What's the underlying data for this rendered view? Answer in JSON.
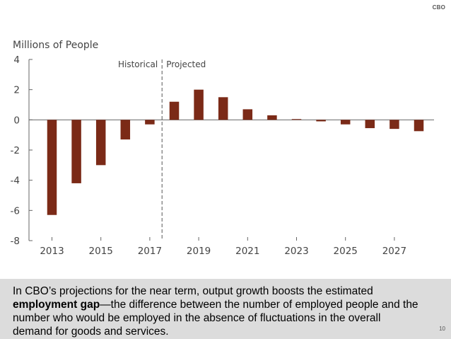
{
  "header": {
    "logo": "CBO"
  },
  "chart_data": {
    "type": "bar",
    "ylabel": "Millions of People",
    "ylim": [
      -8,
      4
    ],
    "yticks": [
      4,
      2,
      0,
      -2,
      -4,
      -6,
      -8
    ],
    "categories": [
      2013,
      2014,
      2015,
      2016,
      2017,
      2018,
      2019,
      2020,
      2021,
      2022,
      2023,
      2024,
      2025,
      2026,
      2027,
      2028
    ],
    "xtick_labels": [
      "2013",
      "2015",
      "2017",
      "2019",
      "2021",
      "2023",
      "2025",
      "2027"
    ],
    "values": [
      -6.3,
      -4.2,
      -3.0,
      -1.3,
      -0.3,
      1.2,
      2.0,
      1.5,
      0.7,
      0.3,
      0.05,
      -0.1,
      -0.3,
      -0.55,
      -0.6,
      -0.75
    ],
    "annotations": {
      "left": "Historical",
      "right": "Projected"
    },
    "bar_color": "#7b2a17"
  },
  "caption": {
    "text_before": "In CBO’s projections for the near term, output growth boosts the estimated ",
    "term": "employment gap",
    "text_after": "—the difference between the number of employed people and the number who would be employed in the absence of fluctuations in the overall demand for goods and services."
  },
  "footer": {
    "page_number": "10"
  }
}
